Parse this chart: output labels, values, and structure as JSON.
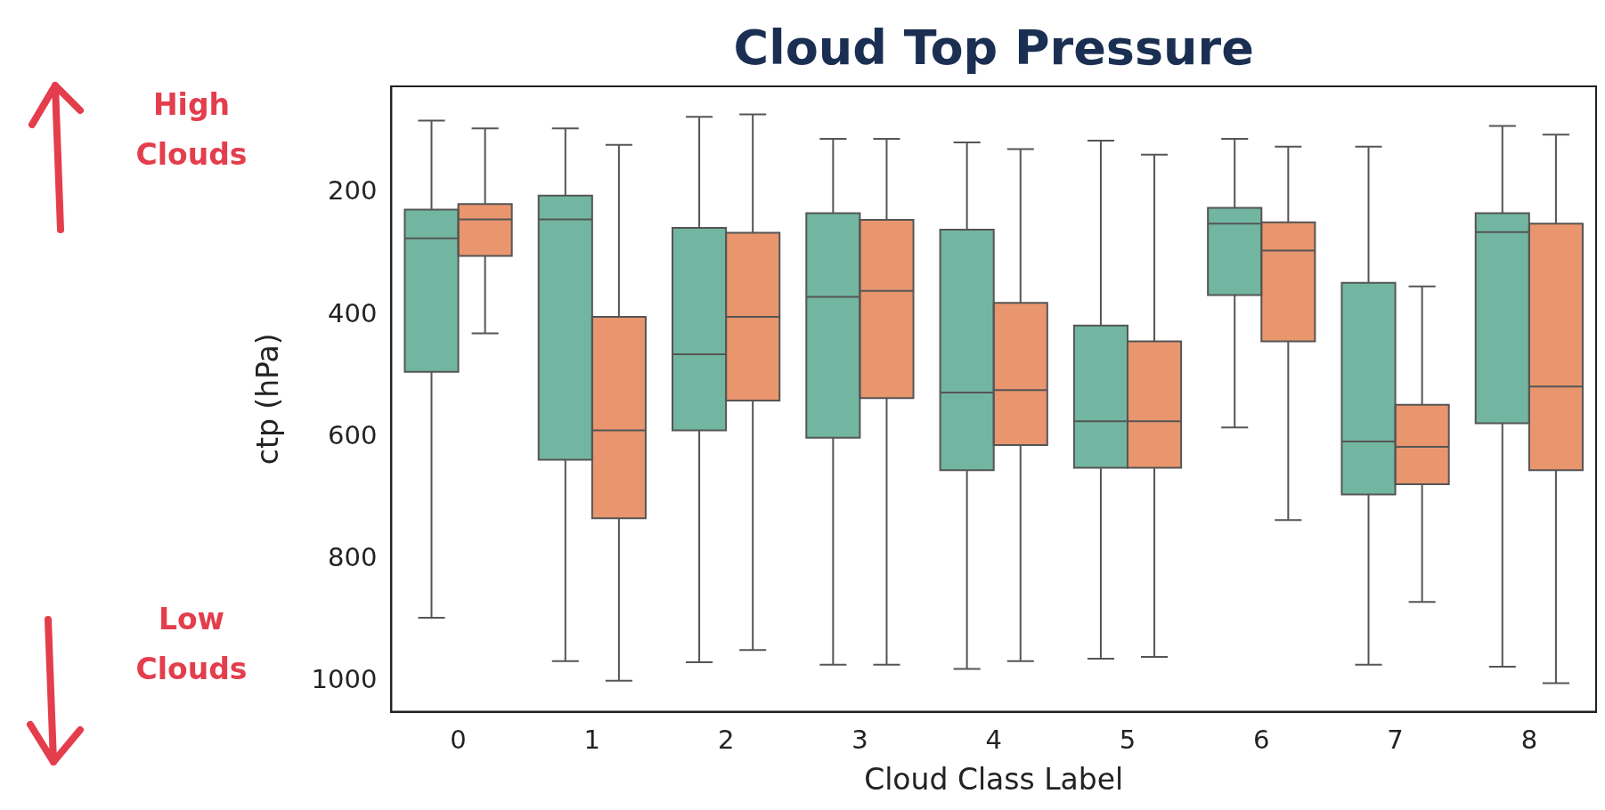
{
  "chart_data": {
    "type": "box",
    "title": "Cloud Top Pressure",
    "xlabel": "Cloud Class Label",
    "ylabel": "ctp (hPa)",
    "annotations": [
      "High Clouds",
      "Low Clouds"
    ],
    "categories": [
      "0",
      "1",
      "2",
      "3",
      "4",
      "5",
      "6",
      "7",
      "8"
    ],
    "ylim": [
      1050,
      25
    ],
    "yticks": [
      200,
      400,
      600,
      800,
      1000
    ],
    "grid": false,
    "legend": false,
    "series": [
      {
        "color": "#72b6a1",
        "boxes": [
          {
            "low": 81,
            "q1": 227,
            "median": 274,
            "q3": 493,
            "high": 896
          },
          {
            "low": 94,
            "q1": 204,
            "median": 243,
            "q3": 637,
            "high": 967
          },
          {
            "low": 75,
            "q1": 257,
            "median": 464,
            "q3": 589,
            "high": 969
          },
          {
            "low": 111,
            "q1": 233,
            "median": 370,
            "q3": 601,
            "high": 973
          },
          {
            "low": 117,
            "q1": 260,
            "median": 527,
            "q3": 654,
            "high": 980
          },
          {
            "low": 114,
            "q1": 417,
            "median": 574,
            "q3": 650,
            "high": 963
          },
          {
            "low": 111,
            "q1": 224,
            "median": 250,
            "q3": 367,
            "high": 584
          },
          {
            "low": 124,
            "q1": 347,
            "median": 607,
            "q3": 694,
            "high": 973
          },
          {
            "low": 90,
            "q1": 233,
            "median": 264,
            "q3": 577,
            "high": 976
          }
        ]
      },
      {
        "color": "#e9966e",
        "boxes": [
          {
            "low": 94,
            "q1": 218,
            "median": 243,
            "q3": 303,
            "high": 430
          },
          {
            "low": 121,
            "q1": 403,
            "median": 589,
            "q3": 733,
            "high": 999
          },
          {
            "low": 71,
            "q1": 265,
            "median": 403,
            "q3": 540,
            "high": 949
          },
          {
            "low": 111,
            "q1": 244,
            "median": 360,
            "q3": 536,
            "high": 973
          },
          {
            "low": 128,
            "q1": 380,
            "median": 523,
            "q3": 613,
            "high": 967
          },
          {
            "low": 137,
            "q1": 443,
            "median": 574,
            "q3": 650,
            "high": 960
          },
          {
            "low": 124,
            "q1": 248,
            "median": 294,
            "q3": 443,
            "high": 736
          },
          {
            "low": 353,
            "q1": 547,
            "median": 616,
            "q3": 677,
            "high": 870
          },
          {
            "low": 104,
            "q1": 250,
            "median": 517,
            "q3": 654,
            "high": 1003
          }
        ]
      }
    ]
  }
}
